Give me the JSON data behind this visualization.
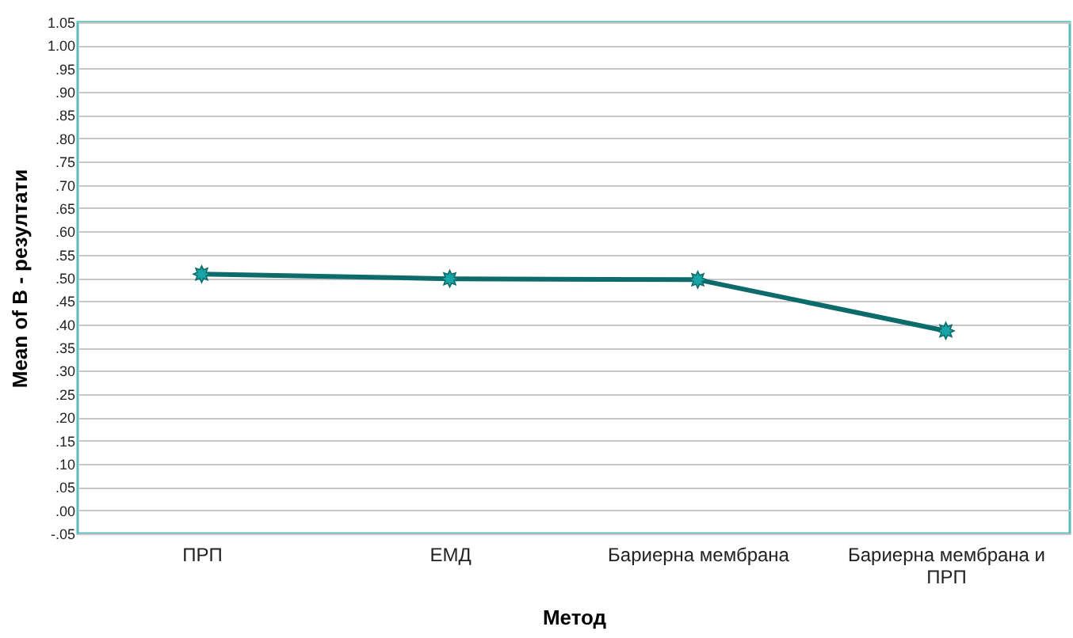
{
  "chart_data": {
    "type": "line",
    "xlabel": "Метод",
    "ylabel": "Mean of B - резултати",
    "categories": [
      "ПРП",
      "ЕМД",
      "Бариерна мембрана",
      "Бариерна мембрана и ПРП"
    ],
    "series": [
      {
        "color": "#0e6b6b",
        "values": [
          0.508,
          0.498,
          0.496,
          0.386
        ]
      }
    ],
    "marker": "star",
    "grid": "y",
    "legend": false,
    "ylim": [
      -0.05,
      1.05
    ],
    "yticks": [
      {
        "value": -0.05,
        "label": "-.05"
      },
      {
        "value": 0,
        "label": ".00"
      },
      {
        "value": 0.05,
        "label": ".05"
      },
      {
        "value": 0.1,
        "label": ".10"
      },
      {
        "value": 0.15,
        "label": ".15"
      },
      {
        "value": 0.2,
        "label": ".20"
      },
      {
        "value": 0.25,
        "label": ".25"
      },
      {
        "value": 0.3,
        "label": ".30"
      },
      {
        "value": 0.35,
        "label": ".35"
      },
      {
        "value": 0.4,
        "label": ".40"
      },
      {
        "value": 0.45,
        "label": ".45"
      },
      {
        "value": 0.5,
        "label": ".50"
      },
      {
        "value": 0.55,
        "label": ".55"
      },
      {
        "value": 0.6,
        "label": ".60"
      },
      {
        "value": 0.65,
        "label": ".65"
      },
      {
        "value": 0.7,
        "label": ".70"
      },
      {
        "value": 0.75,
        "label": ".75"
      },
      {
        "value": 0.8,
        "label": ".80"
      },
      {
        "value": 0.85,
        "label": ".85"
      },
      {
        "value": 0.9,
        "label": ".90"
      },
      {
        "value": 0.95,
        "label": ".95"
      },
      {
        "value": 1,
        "label": "1.00"
      },
      {
        "value": 1.05,
        "label": "1.05"
      }
    ]
  }
}
